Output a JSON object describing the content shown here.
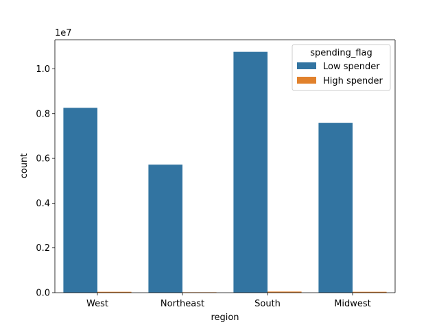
{
  "chart_data": {
    "type": "bar",
    "xlabel": "region",
    "ylabel": "count",
    "offset_text": "1e7",
    "categories": [
      "West",
      "Northeast",
      "South",
      "Midwest"
    ],
    "y_tick_values": [
      0.0,
      0.2,
      0.4,
      0.6,
      0.8,
      1.0
    ],
    "y_tick_labels": [
      "0.0",
      "0.2",
      "0.4",
      "0.6",
      "0.8",
      "1.0"
    ],
    "ylim": [
      0,
      11300000
    ],
    "legend": {
      "title": "spending_flag",
      "placement": "top-right"
    },
    "series": [
      {
        "name": "Low spender",
        "color": "#3274a1",
        "values": [
          8260000,
          5720000,
          10760000,
          7590000
        ]
      },
      {
        "name": "High spender",
        "color": "#e1812c",
        "values": [
          40000,
          20000,
          50000,
          40000
        ]
      }
    ]
  }
}
